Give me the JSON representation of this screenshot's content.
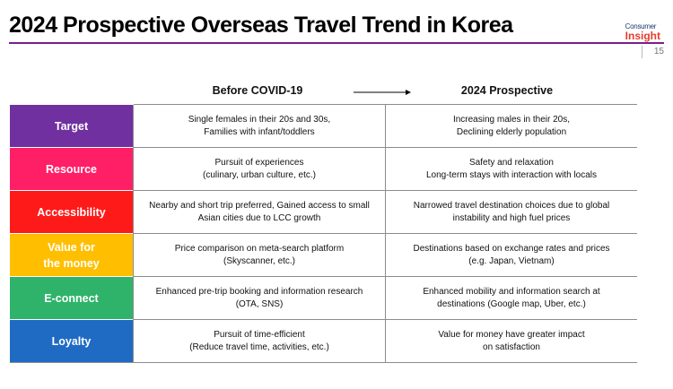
{
  "header": {
    "title": "2024 Prospective Overseas Travel Trend in Korea",
    "logo_consumer": "Consumer",
    "logo_insight": "Insight",
    "page_number": "15"
  },
  "columns": {
    "before": "Before COVID-19",
    "after": "2024 Prospective"
  },
  "rows": [
    {
      "label": [
        "Target"
      ],
      "color": "#7030a0",
      "before": [
        "Single females in their 20s and 30s,",
        "Families with infant/toddlers"
      ],
      "after": [
        "Increasing males in their 20s,",
        "Declining elderly population"
      ]
    },
    {
      "label": [
        "Resource"
      ],
      "color": "#ff1f66",
      "before": [
        "Pursuit of experiences",
        "(culinary, urban culture, etc.)"
      ],
      "after": [
        "Safety and relaxation",
        "Long-term stays with interaction with locals"
      ]
    },
    {
      "label": [
        "Accessibility"
      ],
      "color": "#ff1a1a",
      "before": [
        "Nearby and short trip preferred, Gained access to small",
        "Asian cities due to LCC growth"
      ],
      "after": [
        "Narrowed travel destination choices due to global",
        "instability and high fuel prices"
      ]
    },
    {
      "label": [
        "Value for",
        "the money"
      ],
      "color": "#ffbf00",
      "before": [
        "Price comparison on meta-search platform",
        "(Skyscanner, etc.)"
      ],
      "after": [
        "Destinations based on exchange rates and prices",
        "(e.g. Japan, Vietnam)"
      ]
    },
    {
      "label": [
        "E-connect"
      ],
      "color": "#2fb36b",
      "before": [
        "Enhanced pre-trip booking and information research",
        "(OTA, SNS)"
      ],
      "after": [
        "Enhanced mobility and information search at",
        "destinations (Google map, Uber, etc.)"
      ]
    },
    {
      "label": [
        "Loyalty"
      ],
      "color": "#1f6bc4",
      "before": [
        "Pursuit of time-efficient",
        "(Reduce travel time, activities, etc.)"
      ],
      "after": [
        "Value for money have greater impact",
        "on satisfaction"
      ]
    }
  ]
}
